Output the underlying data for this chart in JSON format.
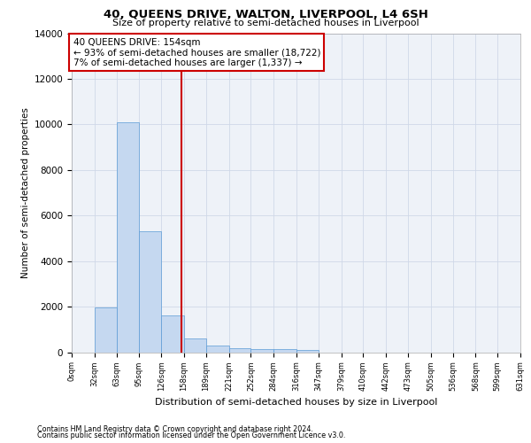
{
  "title": "40, QUEENS DRIVE, WALTON, LIVERPOOL, L4 6SH",
  "subtitle": "Size of property relative to semi-detached houses in Liverpool",
  "xlabel": "Distribution of semi-detached houses by size in Liverpool",
  "ylabel": "Number of semi-detached properties",
  "bar_color": "#c5d8f0",
  "bar_edge_color": "#5b9bd5",
  "grid_color": "#d0d8e8",
  "background_color": "#eef2f8",
  "property_size": 154,
  "property_line_color": "#cc0000",
  "annotation_line1": "40 QUEENS DRIVE: 154sqm",
  "annotation_line2": "← 93% of semi-detached houses are smaller (18,722)",
  "annotation_line3": "7% of semi-detached houses are larger (1,337) →",
  "annotation_box_color": "#cc0000",
  "bins": [
    0,
    32,
    63,
    95,
    126,
    158,
    189,
    221,
    252,
    284,
    316,
    347,
    379,
    410,
    442,
    473,
    505,
    536,
    568,
    599,
    631
  ],
  "bar_heights": [
    0,
    1950,
    10100,
    5300,
    1600,
    600,
    300,
    180,
    150,
    120,
    110,
    0,
    0,
    0,
    0,
    0,
    0,
    0,
    0,
    0
  ],
  "tick_labels": [
    "0sqm",
    "32sqm",
    "63sqm",
    "95sqm",
    "126sqm",
    "158sqm",
    "189sqm",
    "221sqm",
    "252sqm",
    "284sqm",
    "316sqm",
    "347sqm",
    "379sqm",
    "410sqm",
    "442sqm",
    "473sqm",
    "505sqm",
    "536sqm",
    "568sqm",
    "599sqm",
    "631sqm"
  ],
  "ylim": [
    0,
    14000
  ],
  "yticks": [
    0,
    2000,
    4000,
    6000,
    8000,
    10000,
    12000,
    14000
  ],
  "footer_line1": "Contains HM Land Registry data © Crown copyright and database right 2024.",
  "footer_line2": "Contains public sector information licensed under the Open Government Licence v3.0.",
  "title_fontsize": 9.5,
  "subtitle_fontsize": 8,
  "ylabel_fontsize": 7.5,
  "xlabel_fontsize": 8,
  "ytick_fontsize": 7.5,
  "xtick_fontsize": 6,
  "footer_fontsize": 5.8,
  "annotation_fontsize": 7.5
}
